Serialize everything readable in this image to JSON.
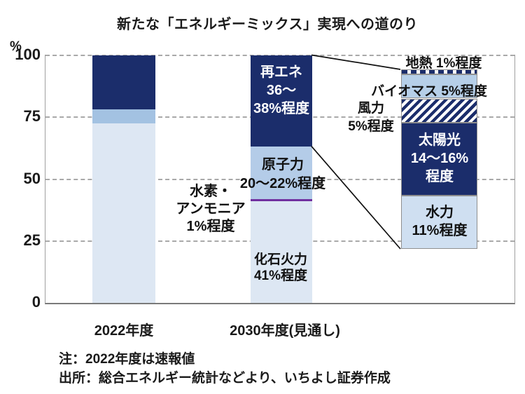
{
  "title": "新たな「エネルギーミックス」実現への道のり",
  "y_axis": {
    "unit": "%",
    "ticks": [
      "100",
      "75",
      "50",
      "25",
      "0"
    ]
  },
  "x_labels": {
    "fy2022": "2022年度",
    "fy2030": "2030年度(見通し)"
  },
  "segment_labels": {
    "renewable": {
      "line1": "再エネ",
      "line2": "36〜",
      "line3": "38%程度"
    },
    "nuclear": {
      "line1": "原子力",
      "line2": "20〜22%程度"
    },
    "hydrogen_ammonia": {
      "line1": "水素・",
      "line2": "アンモニア",
      "line3": "1%程度"
    },
    "fossil": {
      "line1": "化石火力",
      "line2": "41%程度"
    },
    "geothermal": {
      "line1": "地熱 1%程度"
    },
    "biomass": {
      "line1": "バイオマス 5%程度"
    },
    "wind": {
      "line1": "風力",
      "line2": "5%程度"
    },
    "solar": {
      "line1": "太陽光",
      "line2": "14〜16%",
      "line3": "程度"
    },
    "hydro": {
      "line1": "水力",
      "line2": "11%程度"
    }
  },
  "notes": {
    "note": "注：2022年度は速報値",
    "source": "出所：総合エネルギー統計などより、いちよし証券作成"
  },
  "colors": {
    "navy": "#1b2d6b",
    "nuclear_blue_2030": "#b4cce8",
    "nuclear_blue_2022": "#a3c2e2",
    "fossil_light_blue": "#dde7f3",
    "biomass_blue": "#b6cfe8",
    "hydro_blue": "#cfdff1",
    "hydrogen_purple": "#7030a0",
    "grid_gray": "#a9a9a9",
    "text_black": "#1a1a1a"
  },
  "chart_data": {
    "type": "bar",
    "subtype": "stacked-percent-with-exploded-breakdown",
    "title": "新たな「エネルギーミックス」実現への道のり",
    "ylabel": "%",
    "ylim": [
      0,
      100
    ],
    "yticks": [
      0,
      25,
      50,
      75,
      100
    ],
    "grid": "dashed-horizontal",
    "legend": "none",
    "categories": [
      "2022年度",
      "2030年度(見通し)"
    ],
    "bars": [
      {
        "id": "fy2022",
        "category": "2022年度",
        "segments": [
          {
            "key": "fossil",
            "name": "化石火力",
            "value": 72.5,
            "style": "fossil"
          },
          {
            "key": "nuclear",
            "name": "原子力",
            "value": 5.5,
            "style": "nuclear2022"
          },
          {
            "key": "renewable",
            "name": "再エネ",
            "value": 22,
            "style": "navy"
          }
        ]
      },
      {
        "id": "fy2030",
        "category": "2030年度(見通し)",
        "segments": [
          {
            "key": "fossil",
            "name": "化石火力",
            "value": 41,
            "value_label": "41%程度",
            "style": "fossil"
          },
          {
            "key": "hydrogen-ammonia",
            "name": "水素・アンモニア",
            "value": 1,
            "value_label": "1%程度",
            "style": "hydrogen"
          },
          {
            "key": "nuclear",
            "name": "原子力",
            "value": 21,
            "value_label": "20〜22%程度",
            "style": "nuclear"
          },
          {
            "key": "renewable",
            "name": "再エネ",
            "value": 37,
            "value_label": "36〜38%程度",
            "style": "navy"
          }
        ]
      },
      {
        "id": "renewable-breakdown",
        "segments": [
          {
            "key": "hydro",
            "name": "水力",
            "value": 11,
            "value_label": "11%程度",
            "style": "hydro"
          },
          {
            "key": "solar",
            "name": "太陽光",
            "value": 15,
            "value_label": "14〜16%程度",
            "style": "navy"
          },
          {
            "key": "wind",
            "name": "風力",
            "value": 5,
            "value_label": "5%程度",
            "style": "wind_hatch"
          },
          {
            "key": "biomass",
            "name": "バイオマス",
            "value": 5,
            "value_label": "5%程度",
            "style": "biomass"
          },
          {
            "key": "geothermal",
            "name": "地熱",
            "value": 1,
            "value_label": "1%程度",
            "style": "geo_dash"
          }
        ]
      }
    ]
  }
}
